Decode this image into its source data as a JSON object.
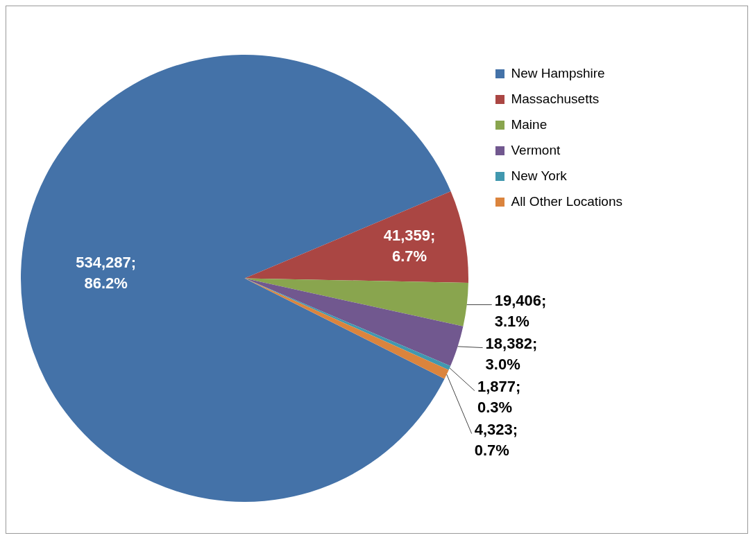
{
  "chart_data": {
    "type": "pie",
    "categories": [
      "New Hampshire",
      "Massachusetts",
      "Maine",
      "Vermont",
      "New York",
      "All Other Locations"
    ],
    "values": [
      534287,
      41359,
      19406,
      18382,
      1877,
      4323
    ],
    "colors": [
      "#4472a8",
      "#aa4643",
      "#89a54e",
      "#71588f",
      "#4198af",
      "#db843d"
    ],
    "value_labels": [
      "534,287;\n86.2%",
      "41,359;\n6.7%",
      "19,406;\n3.1%",
      "18,382;\n3.0%",
      "1,877;\n0.3%",
      "4,323;\n0.7%"
    ],
    "legend": "top right"
  }
}
